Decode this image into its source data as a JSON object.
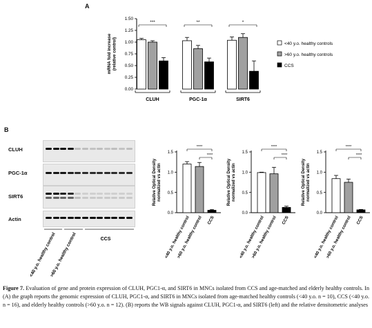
{
  "panel_a_letter": "A",
  "panel_b_letter": "B",
  "chart_a": {
    "type": "bar",
    "ylabel": "mRNA fold increase (relative control)",
    "ylabel_line1": "mRNA fold increase",
    "ylabel_line2": "(relative control)",
    "ylim": [
      0,
      1.5
    ],
    "yticks": [
      "0.00",
      "0.25",
      "0.50",
      "0.75",
      "1.00",
      "1.25",
      "1.50"
    ],
    "categories": [
      "CLUH",
      "PGC-1α",
      "SIRT6"
    ],
    "series": [
      {
        "name": "<40 y.o. healthy controls",
        "color": "#ffffff",
        "values": [
          1.05,
          1.03,
          1.04
        ]
      },
      {
        "name": ">60 y.o. healthy controls",
        "color": "#a0a0a0",
        "values": [
          1.0,
          0.86,
          1.1
        ]
      },
      {
        "name": "CCS",
        "color": "#000000",
        "values": [
          0.6,
          0.58,
          0.38
        ]
      }
    ],
    "errors": [
      [
        0.03,
        0.07,
        0.07
      ],
      [
        0.03,
        0.07,
        0.08
      ],
      [
        0.07,
        0.08,
        0.22
      ]
    ],
    "significance": [
      "***",
      "**",
      "*"
    ],
    "legend": [
      "<40 y.o. healthy controls",
      ">60 y.o. healthy controls",
      "CCS"
    ]
  },
  "blot": {
    "labels": [
      "CLUH",
      "PGC-1α",
      "SIRT6",
      "Actin"
    ],
    "group_labels": [
      "<40 y.o. healthy control",
      ">60 y.o. healthy control",
      "CCS"
    ]
  },
  "charts_b": [
    {
      "type": "bar",
      "ylabel_line1": "Relative Optical Density",
      "ylabel_line2": "normalized vs actin",
      "ylim": [
        0,
        1.5
      ],
      "yticks": [
        "0.0",
        "0.5",
        "1.0",
        "1.5"
      ],
      "categories": [
        "<40 y.o. healthy control",
        ">60 y.o. healthy control",
        "CCS"
      ],
      "values": [
        1.2,
        1.14,
        0.06
      ],
      "errors": [
        0.06,
        0.1,
        0.02
      ],
      "colors": [
        "#ffffff",
        "#a0a0a0",
        "#000000"
      ],
      "significance": [
        "****",
        "****"
      ]
    },
    {
      "type": "bar",
      "ylabel_line1": "Relative Optical Density",
      "ylabel_line2": "normalized vs actin",
      "ylim": [
        0,
        1.5
      ],
      "yticks": [
        "0.0",
        "0.5",
        "1.0",
        "1.5"
      ],
      "categories": [
        "<40 y.o. healthy control",
        ">60 y.o. healthy control",
        "CCS"
      ],
      "values": [
        0.99,
        0.96,
        0.13
      ],
      "errors": [
        0.01,
        0.16,
        0.03
      ],
      "colors": [
        "#ffffff",
        "#a0a0a0",
        "#000000"
      ],
      "significance": [
        "****",
        "****"
      ]
    },
    {
      "type": "bar",
      "ylabel_line1": "Relative Optical Density",
      "ylabel_line2": "normalized vs actin",
      "ylim": [
        0,
        1.5
      ],
      "yticks": [
        "0.0",
        "0.5",
        "1.0",
        "1.5"
      ],
      "categories": [
        "<40 y.o. healthy control",
        ">60 y.o. healthy control",
        "CCS"
      ],
      "values": [
        0.84,
        0.75,
        0.07
      ],
      "errors": [
        0.08,
        0.08,
        0.01
      ],
      "colors": [
        "#ffffff",
        "#a0a0a0",
        "#000000"
      ],
      "significance": [
        "****",
        "****"
      ]
    }
  ],
  "caption": {
    "figure_label": "Figure 7.",
    "text": "Evaluation of gene and protein expression of CLUH, PGC1-α, and SIRT6 in MNCs isolated from CCS and age-matched and elderly healthy controls. In (A) the graph reports the genomic expression of CLUH, PGC1-α, and SIRT6 in MNCs isolated from age-matched healthy controls (<40 y.o. n = 10), CCS (<40 y.o. n = 16), and elderly healthy controls (>60 y.o. n = 12). (B) reports the WB signals against CLUH, PGC1-α, and SIRT6 (left) and the relative densitometric analyses"
  }
}
